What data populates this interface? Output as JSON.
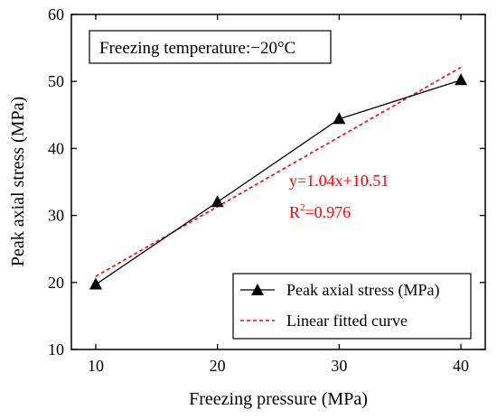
{
  "chart_data": {
    "type": "line",
    "xlabel": "Freezing pressure (MPa)",
    "ylabel": "Peak axial stress (MPa)",
    "xlim": [
      8,
      42
    ],
    "ylim": [
      10,
      60
    ],
    "x_ticks": [
      10,
      20,
      30,
      40
    ],
    "y_ticks": [
      10,
      20,
      30,
      40,
      50,
      60
    ],
    "grid": false,
    "annotation_box": "Freezing temperature:−20°C",
    "series": [
      {
        "name": "Peak axial stress (MPa)",
        "x": [
          10,
          20,
          30,
          40
        ],
        "y": [
          19.7,
          32.0,
          44.4,
          50.2
        ],
        "color": "#000000",
        "marker": "triangle"
      },
      {
        "name": "Linear fitted curve",
        "x": [
          10,
          40
        ],
        "y": [
          20.91,
          52.11
        ],
        "color": "#ff0000",
        "dashed": true
      }
    ],
    "fit_equation": "y=1.04x+10.51",
    "r2_prefix": "R",
    "r2_sup": "2",
    "r2_value": "=0.976",
    "legend_position": "bottom-right"
  }
}
